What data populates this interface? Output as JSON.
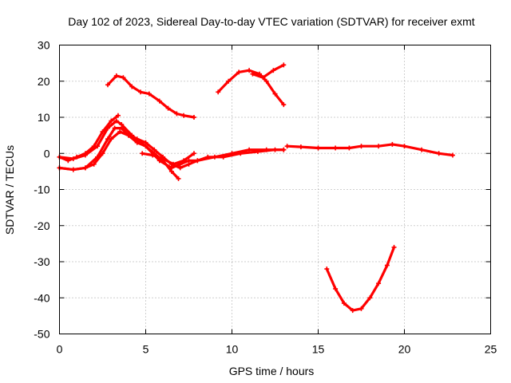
{
  "chart_data": {
    "type": "line",
    "title": "Day 102 of 2023, Sidereal Day-to-day VTEC variation (SDTVAR) for receiver exmt",
    "xlabel": "GPS time / hours",
    "ylabel": "SDTVAR / TECUs",
    "xlim": [
      0,
      25
    ],
    "ylim": [
      -50,
      30
    ],
    "xticks": [
      0,
      5,
      10,
      15,
      20,
      25
    ],
    "yticks": [
      -50,
      -40,
      -30,
      -20,
      -10,
      0,
      10,
      20,
      30
    ],
    "grid": true,
    "color": "#ff0000",
    "series": [
      {
        "name": "trace-1",
        "x": [
          0.0,
          0.8,
          1.5,
          2.2,
          2.8,
          3.3,
          3.6,
          4.2,
          5.0,
          5.8,
          6.5,
          7.0,
          7.5,
          8.0,
          8.6,
          9.5,
          10.5,
          11.5,
          12.5,
          13.0
        ],
        "y": [
          -1,
          -1.5,
          -0.5,
          2,
          7,
          9,
          8,
          5,
          2,
          -2,
          -4,
          -3,
          -2,
          -2,
          -1,
          -1,
          0,
          0.5,
          1,
          1
        ]
      },
      {
        "name": "trace-2",
        "x": [
          0.0,
          0.8,
          1.5,
          2.2,
          2.8,
          3.2,
          3.6,
          4.0,
          4.5,
          5.0,
          5.5,
          6.0,
          6.5,
          7.0,
          7.5,
          8.0,
          9.0,
          10.0,
          11.0,
          12.0,
          13.0
        ],
        "y": [
          -4,
          -4.5,
          -4,
          -1,
          4,
          7,
          7,
          5,
          4,
          3,
          1,
          -1,
          -3,
          -4,
          -3,
          -2,
          -1,
          0,
          1,
          1,
          1
        ]
      },
      {
        "name": "trace-3",
        "x": [
          0.0,
          0.5,
          1.0,
          1.5,
          2.0,
          2.5,
          3.0,
          3.4
        ],
        "y": [
          -1,
          -2,
          -1,
          0,
          2,
          6,
          9,
          10.5
        ]
      },
      {
        "name": "trace-4",
        "x": [
          0.0,
          0.8,
          1.5,
          2.0,
          2.5,
          3.0,
          3.5,
          4.0,
          4.5,
          5.0,
          5.5,
          6.0,
          6.5,
          6.9
        ],
        "y": [
          -4,
          -4.5,
          -4,
          -3,
          0,
          4,
          6,
          5,
          3,
          2,
          0,
          -2,
          -5,
          -7
        ]
      },
      {
        "name": "trace-5",
        "x": [
          4.8,
          5.4,
          6.0,
          6.6,
          7.2,
          7.8
        ],
        "y": [
          0,
          -0.5,
          -1.5,
          -3,
          -2,
          0
        ]
      },
      {
        "name": "trace-6",
        "x": [
          2.8,
          3.3,
          3.7,
          4.2,
          4.7,
          5.2,
          5.8,
          6.3,
          6.8,
          7.2,
          7.8
        ],
        "y": [
          19,
          21.5,
          21,
          18.5,
          17,
          16.5,
          14.5,
          12.5,
          11,
          10.5,
          10
        ]
      },
      {
        "name": "trace-7",
        "x": [
          9.2,
          9.8,
          10.4,
          11.0,
          11.6,
          12.0,
          12.5,
          13.0
        ],
        "y": [
          17,
          20,
          22.5,
          23,
          22,
          20,
          16.5,
          13.5
        ]
      },
      {
        "name": "trace-8",
        "x": [
          11.2,
          11.8,
          12.4,
          13.0
        ],
        "y": [
          22,
          21,
          23,
          24.5
        ]
      },
      {
        "name": "trace-9",
        "x": [
          13.2,
          14.0,
          15.0,
          16.0,
          16.8,
          17.5,
          18.5,
          19.3,
          20.0,
          21.0,
          22.0,
          22.8
        ],
        "y": [
          2,
          1.8,
          1.5,
          1.5,
          1.5,
          2,
          2,
          2.5,
          2,
          1,
          0,
          -0.5
        ]
      },
      {
        "name": "trace-10",
        "x": [
          15.5,
          16.0,
          16.5,
          17.0,
          17.5,
          18.0,
          18.5,
          19.0,
          19.4
        ],
        "y": [
          -32,
          -37.5,
          -41.5,
          -43.5,
          -43,
          -40,
          -36,
          -31,
          -26
        ]
      }
    ]
  }
}
